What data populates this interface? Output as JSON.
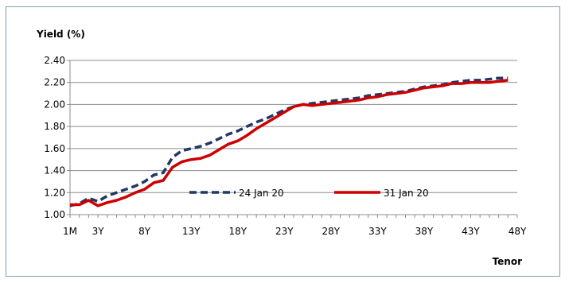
{
  "chart_data": {
    "type": "line",
    "ylabel": "Yield (%)",
    "xlabel": "Tenor",
    "ylim": [
      1.0,
      2.4
    ],
    "yticks": [
      "1.00",
      "1.20",
      "1.40",
      "1.60",
      "1.80",
      "2.00",
      "2.20",
      "2.40"
    ],
    "xticks": [
      "1M",
      "3Y",
      "8Y",
      "13Y",
      "18Y",
      "23Y",
      "28Y",
      "33Y",
      "38Y",
      "43Y",
      "48Y"
    ],
    "xtick_values": [
      0,
      3,
      8,
      13,
      18,
      23,
      28,
      33,
      38,
      43,
      48
    ],
    "xlim": [
      0,
      48
    ],
    "grid": "horizontal",
    "legend_position": "inside, bottom-center",
    "series": [
      {
        "name": "24 Jan 20",
        "color": "#1f3864",
        "style": "dashed",
        "points": [
          [
            0,
            1.08
          ],
          [
            1,
            1.1
          ],
          [
            2,
            1.15
          ],
          [
            3,
            1.12
          ],
          [
            4,
            1.17
          ],
          [
            5,
            1.2
          ],
          [
            6,
            1.23
          ],
          [
            7,
            1.26
          ],
          [
            8,
            1.3
          ],
          [
            9,
            1.36
          ],
          [
            10,
            1.38
          ],
          [
            11,
            1.52
          ],
          [
            12,
            1.58
          ],
          [
            13,
            1.6
          ],
          [
            14,
            1.62
          ],
          [
            15,
            1.65
          ],
          [
            16,
            1.69
          ],
          [
            17,
            1.73
          ],
          [
            18,
            1.76
          ],
          [
            19,
            1.8
          ],
          [
            20,
            1.84
          ],
          [
            21,
            1.87
          ],
          [
            22,
            1.91
          ],
          [
            23,
            1.95
          ],
          [
            24,
            1.98
          ],
          [
            25,
            2.0
          ],
          [
            26,
            2.01
          ],
          [
            27,
            2.02
          ],
          [
            28,
            2.03
          ],
          [
            29,
            2.04
          ],
          [
            30,
            2.05
          ],
          [
            31,
            2.06
          ],
          [
            32,
            2.08
          ],
          [
            33,
            2.09
          ],
          [
            34,
            2.1
          ],
          [
            35,
            2.11
          ],
          [
            36,
            2.12
          ],
          [
            37,
            2.14
          ],
          [
            38,
            2.16
          ],
          [
            39,
            2.17
          ],
          [
            40,
            2.18
          ],
          [
            41,
            2.2
          ],
          [
            42,
            2.21
          ],
          [
            43,
            2.22
          ],
          [
            44,
            2.22
          ],
          [
            45,
            2.23
          ],
          [
            46,
            2.24
          ],
          [
            47,
            2.24
          ]
        ]
      },
      {
        "name": "31 Jan 20",
        "color": "#cc0000",
        "style": "solid",
        "points": [
          [
            0,
            1.09
          ],
          [
            1,
            1.09
          ],
          [
            2,
            1.13
          ],
          [
            3,
            1.08
          ],
          [
            4,
            1.11
          ],
          [
            5,
            1.13
          ],
          [
            6,
            1.16
          ],
          [
            7,
            1.2
          ],
          [
            8,
            1.23
          ],
          [
            9,
            1.29
          ],
          [
            10,
            1.31
          ],
          [
            11,
            1.43
          ],
          [
            12,
            1.48
          ],
          [
            13,
            1.5
          ],
          [
            14,
            1.51
          ],
          [
            15,
            1.54
          ],
          [
            16,
            1.59
          ],
          [
            17,
            1.64
          ],
          [
            18,
            1.67
          ],
          [
            19,
            1.72
          ],
          [
            20,
            1.78
          ],
          [
            21,
            1.83
          ],
          [
            22,
            1.88
          ],
          [
            23,
            1.93
          ],
          [
            24,
            1.98
          ],
          [
            25,
            2.0
          ],
          [
            26,
            1.99
          ],
          [
            27,
            2.0
          ],
          [
            28,
            2.01
          ],
          [
            29,
            2.02
          ],
          [
            30,
            2.03
          ],
          [
            31,
            2.04
          ],
          [
            32,
            2.06
          ],
          [
            33,
            2.07
          ],
          [
            34,
            2.09
          ],
          [
            35,
            2.1
          ],
          [
            36,
            2.11
          ],
          [
            37,
            2.13
          ],
          [
            38,
            2.15
          ],
          [
            39,
            2.16
          ],
          [
            40,
            2.17
          ],
          [
            41,
            2.19
          ],
          [
            42,
            2.19
          ],
          [
            43,
            2.2
          ],
          [
            44,
            2.2
          ],
          [
            45,
            2.2
          ],
          [
            46,
            2.21
          ],
          [
            47,
            2.22
          ]
        ]
      }
    ]
  }
}
